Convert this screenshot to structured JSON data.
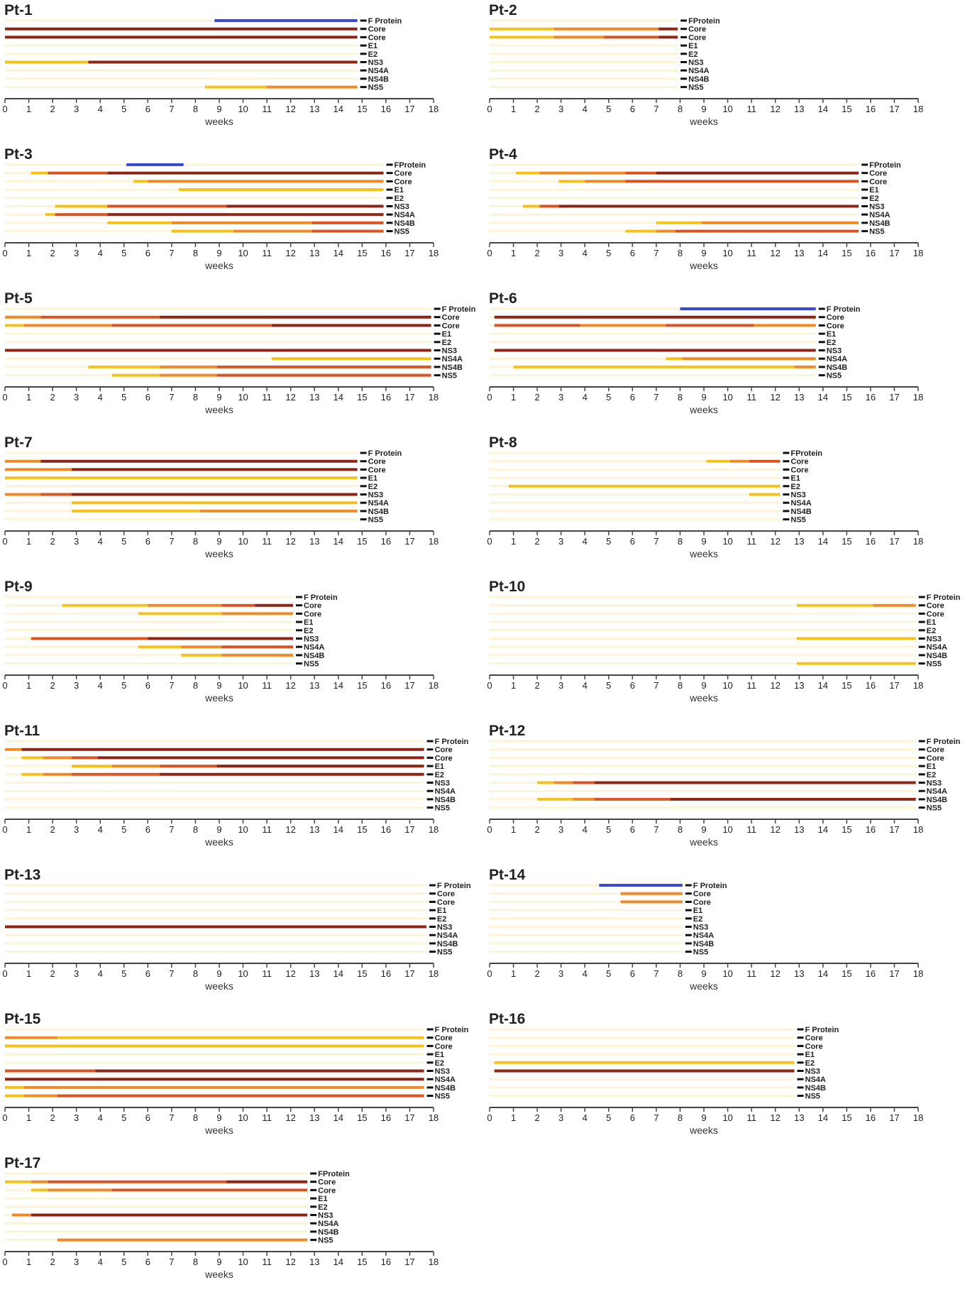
{
  "colors": {
    "track": "#fcf4d6",
    "axis": "#444444",
    "y": "#f6c21a",
    "o": "#f08a24",
    "r": "#d95420",
    "d": "#8e2414",
    "b": "#3a48d8"
  },
  "chart_data": [
    {
      "type": "timeline",
      "title": "Pt-1",
      "xlabel": "weeks",
      "xlim": [
        0,
        18
      ],
      "end": 14.8,
      "rows": [
        "F Protein",
        "Core",
        "Core",
        "E1",
        "E2",
        "NS3",
        "NS4A",
        "NS4B",
        "NS5"
      ],
      "segments": [
        [
          0,
          8.8,
          14.8,
          "b"
        ],
        [
          1,
          0,
          14.8,
          "d"
        ],
        [
          2,
          0,
          14.8,
          "d"
        ],
        [
          5,
          0,
          3.5,
          "y"
        ],
        [
          5,
          3.5,
          14.8,
          "d"
        ],
        [
          8,
          8.4,
          11,
          "y"
        ],
        [
          8,
          11,
          14.8,
          "o"
        ]
      ]
    },
    {
      "type": "timeline",
      "title": "Pt-2",
      "xlabel": "weeks",
      "xlim": [
        0,
        18
      ],
      "end": 7.9,
      "rows": [
        "FProtein",
        "Core",
        "Core",
        "E1",
        "E2",
        "NS3",
        "NS4A",
        "NS4B",
        "NS5"
      ],
      "segments": [
        [
          1,
          0,
          2.7,
          "y"
        ],
        [
          1,
          2.7,
          7.1,
          "o"
        ],
        [
          1,
          7.1,
          7.9,
          "d"
        ],
        [
          2,
          0,
          2.7,
          "y"
        ],
        [
          2,
          2.7,
          4.8,
          "o"
        ],
        [
          2,
          4.8,
          7.1,
          "r"
        ],
        [
          2,
          7.1,
          7.9,
          "d"
        ]
      ]
    },
    {
      "type": "timeline",
      "title": "Pt-3",
      "xlabel": "weeks",
      "xlim": [
        0,
        18
      ],
      "end": 15.9,
      "rows": [
        "FProtein",
        "Core",
        "Core",
        "E1",
        "E2",
        "NS3",
        "NS4A",
        "NS4B",
        "NS5"
      ],
      "segments": [
        [
          0,
          5.1,
          7.5,
          "b"
        ],
        [
          1,
          1.1,
          1.8,
          "y"
        ],
        [
          1,
          1.8,
          4.3,
          "r"
        ],
        [
          1,
          4.3,
          15.9,
          "d"
        ],
        [
          2,
          5.4,
          6,
          "y"
        ],
        [
          2,
          6,
          15.9,
          "o"
        ],
        [
          3,
          7.3,
          15.9,
          "y"
        ],
        [
          5,
          2.1,
          4.3,
          "y"
        ],
        [
          5,
          4.3,
          9.3,
          "r"
        ],
        [
          5,
          9.3,
          15.9,
          "d"
        ],
        [
          6,
          1.7,
          2.1,
          "y"
        ],
        [
          6,
          2.1,
          4.3,
          "r"
        ],
        [
          6,
          4.3,
          15.9,
          "d"
        ],
        [
          7,
          4.3,
          7,
          "y"
        ],
        [
          7,
          7,
          12.9,
          "o"
        ],
        [
          7,
          12.9,
          15.9,
          "r"
        ],
        [
          8,
          7,
          9.6,
          "y"
        ],
        [
          8,
          9.6,
          12.9,
          "o"
        ],
        [
          8,
          12.9,
          15.9,
          "r"
        ]
      ]
    },
    {
      "type": "timeline",
      "title": "Pt-4",
      "xlabel": "weeks",
      "xlim": [
        0,
        18
      ],
      "end": 15.5,
      "rows": [
        "FProtein",
        "Core",
        "Core",
        "E1",
        "E2",
        "NS3",
        "NS4A",
        "NS4B",
        "NS5"
      ],
      "segments": [
        [
          1,
          1.1,
          2.1,
          "y"
        ],
        [
          1,
          2.1,
          5.7,
          "o"
        ],
        [
          1,
          5.7,
          7,
          "r"
        ],
        [
          1,
          7,
          15.5,
          "d"
        ],
        [
          2,
          2.9,
          4,
          "y"
        ],
        [
          2,
          4,
          5.7,
          "o"
        ],
        [
          2,
          5.7,
          15.5,
          "r"
        ],
        [
          5,
          1.4,
          2.1,
          "y"
        ],
        [
          5,
          2.1,
          2.9,
          "r"
        ],
        [
          5,
          2.9,
          15.5,
          "d"
        ],
        [
          7,
          7,
          8.9,
          "y"
        ],
        [
          7,
          8.9,
          15.5,
          "o"
        ],
        [
          8,
          5.7,
          7,
          "y"
        ],
        [
          8,
          7,
          7.8,
          "o"
        ],
        [
          8,
          7.8,
          15.5,
          "r"
        ]
      ]
    },
    {
      "type": "timeline",
      "title": "Pt-5",
      "xlabel": "weeks",
      "xlim": [
        0,
        18
      ],
      "end": 17.9,
      "rows": [
        "F Protein",
        "Core",
        "Core",
        "E1",
        "E2",
        "NS3",
        "NS4A",
        "NS4B",
        "NS5"
      ],
      "segments": [
        [
          1,
          0,
          1.5,
          "o"
        ],
        [
          1,
          1.5,
          6.5,
          "r"
        ],
        [
          1,
          6.5,
          17.9,
          "d"
        ],
        [
          2,
          0,
          0.8,
          "y"
        ],
        [
          2,
          0.8,
          4.5,
          "o"
        ],
        [
          2,
          4.5,
          11.2,
          "r"
        ],
        [
          2,
          11.2,
          17.9,
          "d"
        ],
        [
          5,
          0,
          17.9,
          "d"
        ],
        [
          6,
          11.2,
          17.9,
          "y"
        ],
        [
          7,
          3.5,
          6.5,
          "y"
        ],
        [
          7,
          6.5,
          8.9,
          "o"
        ],
        [
          7,
          8.9,
          17.9,
          "r"
        ],
        [
          8,
          4.5,
          6.5,
          "y"
        ],
        [
          8,
          6.5,
          8.9,
          "o"
        ],
        [
          8,
          8.9,
          17.9,
          "r"
        ]
      ]
    },
    {
      "type": "timeline",
      "title": "Pt-6",
      "xlabel": "weeks",
      "xlim": [
        0,
        18
      ],
      "end": 13.7,
      "rows": [
        "F Protein",
        "Core",
        "Core",
        "E1",
        "E2",
        "NS3",
        "NS4A",
        "NS4B",
        "NS5"
      ],
      "segments": [
        [
          0,
          8,
          13.7,
          "b"
        ],
        [
          1,
          0.2,
          13.7,
          "d"
        ],
        [
          2,
          0.2,
          3.8,
          "r"
        ],
        [
          2,
          3.8,
          7.4,
          "o"
        ],
        [
          2,
          7.4,
          11.1,
          "r"
        ],
        [
          2,
          11.1,
          13.7,
          "o"
        ],
        [
          5,
          0.2,
          13.7,
          "d"
        ],
        [
          6,
          7.4,
          8.1,
          "y"
        ],
        [
          6,
          8.1,
          13.7,
          "o"
        ],
        [
          7,
          1,
          12.8,
          "y"
        ],
        [
          7,
          12.8,
          13.7,
          "o"
        ]
      ]
    },
    {
      "type": "timeline",
      "title": "Pt-7",
      "xlabel": "weeks",
      "xlim": [
        0,
        18
      ],
      "end": 14.8,
      "rows": [
        "F Protein",
        "Core",
        "Core",
        "E1",
        "E2",
        "NS3",
        "NS4A",
        "NS4B",
        "NS5"
      ],
      "segments": [
        [
          1,
          0,
          1.5,
          "o"
        ],
        [
          1,
          1.5,
          14.8,
          "d"
        ],
        [
          2,
          0,
          2.8,
          "o"
        ],
        [
          2,
          2.8,
          14.8,
          "d"
        ],
        [
          3,
          0,
          14.8,
          "y"
        ],
        [
          5,
          0,
          1.5,
          "o"
        ],
        [
          5,
          1.5,
          2.8,
          "r"
        ],
        [
          5,
          2.8,
          14.8,
          "d"
        ],
        [
          6,
          2.8,
          14.8,
          "y"
        ],
        [
          7,
          2.8,
          8.2,
          "y"
        ],
        [
          7,
          8.2,
          14.8,
          "o"
        ]
      ]
    },
    {
      "type": "timeline",
      "title": "Pt-8",
      "xlabel": "weeks",
      "xlim": [
        0,
        18
      ],
      "end": 12.2,
      "rows": [
        "FProtein",
        "Core",
        "Core",
        "E1",
        "E2",
        "NS3",
        "NS4A",
        "NS4B",
        "NS5"
      ],
      "segments": [
        [
          1,
          9.1,
          10.1,
          "y"
        ],
        [
          1,
          10.1,
          10.9,
          "o"
        ],
        [
          1,
          10.9,
          12.2,
          "r"
        ],
        [
          4,
          0.8,
          12.2,
          "y"
        ],
        [
          5,
          10.9,
          12.2,
          "y"
        ]
      ]
    },
    {
      "type": "timeline",
      "title": "Pt-9",
      "xlabel": "weeks",
      "xlim": [
        0,
        18
      ],
      "end": 12.1,
      "rows": [
        "F Protein",
        "Core",
        "Core",
        "E1",
        "E2",
        "NS3",
        "NS4A",
        "NS4B",
        "NS5"
      ],
      "segments": [
        [
          1,
          2.4,
          6,
          "y"
        ],
        [
          1,
          6,
          9.1,
          "o"
        ],
        [
          1,
          9.1,
          10.5,
          "r"
        ],
        [
          1,
          10.5,
          12.1,
          "d"
        ],
        [
          2,
          5.6,
          9.1,
          "y"
        ],
        [
          2,
          9.1,
          12.1,
          "o"
        ],
        [
          5,
          1.1,
          6,
          "r"
        ],
        [
          5,
          6,
          12.1,
          "d"
        ],
        [
          6,
          5.6,
          7.4,
          "y"
        ],
        [
          6,
          7.4,
          9.1,
          "o"
        ],
        [
          6,
          9.1,
          12.1,
          "r"
        ],
        [
          7,
          7.4,
          9.1,
          "y"
        ],
        [
          7,
          9.1,
          12.1,
          "o"
        ]
      ]
    },
    {
      "type": "timeline",
      "title": "Pt-10",
      "xlabel": "weeks",
      "xlim": [
        0,
        18
      ],
      "end": 17.9,
      "rows": [
        "F Protein",
        "Core",
        "Core",
        "E1",
        "E2",
        "NS3",
        "NS4A",
        "NS4B",
        "NS5"
      ],
      "segments": [
        [
          1,
          12.9,
          16.1,
          "y"
        ],
        [
          1,
          16.1,
          17.9,
          "o"
        ],
        [
          5,
          12.9,
          17.9,
          "y"
        ],
        [
          8,
          12.9,
          17.9,
          "y"
        ]
      ]
    },
    {
      "type": "timeline",
      "title": "Pt-11",
      "xlabel": "weeks",
      "xlim": [
        0,
        18
      ],
      "end": 17.6,
      "rows": [
        "F Protein",
        "Core",
        "Core",
        "E1",
        "E2",
        "NS3",
        "NS4A",
        "NS4B",
        "NS5"
      ],
      "segments": [
        [
          1,
          0,
          0.7,
          "o"
        ],
        [
          1,
          0.7,
          17.6,
          "d"
        ],
        [
          2,
          0.7,
          1.6,
          "y"
        ],
        [
          2,
          1.6,
          2.8,
          "o"
        ],
        [
          2,
          2.8,
          3.9,
          "r"
        ],
        [
          2,
          3.9,
          17.6,
          "d"
        ],
        [
          3,
          2.8,
          4.5,
          "y"
        ],
        [
          3,
          4.5,
          6.5,
          "o"
        ],
        [
          3,
          6.5,
          8.9,
          "r"
        ],
        [
          3,
          8.9,
          17.6,
          "d"
        ],
        [
          4,
          0.7,
          1.6,
          "y"
        ],
        [
          4,
          1.6,
          2.8,
          "o"
        ],
        [
          4,
          2.8,
          6.5,
          "r"
        ],
        [
          4,
          6.5,
          17.6,
          "d"
        ]
      ]
    },
    {
      "type": "timeline",
      "title": "Pt-12",
      "xlabel": "weeks",
      "xlim": [
        0,
        18
      ],
      "end": 17.9,
      "rows": [
        "F Protein",
        "Core",
        "Core",
        "E1",
        "E2",
        "NS3",
        "NS4A",
        "NS4B",
        "NS5"
      ],
      "segments": [
        [
          5,
          2,
          2.7,
          "y"
        ],
        [
          5,
          2.7,
          3.5,
          "o"
        ],
        [
          5,
          3.5,
          4.4,
          "r"
        ],
        [
          5,
          4.4,
          17.9,
          "d"
        ],
        [
          7,
          2,
          3.5,
          "y"
        ],
        [
          7,
          3.5,
          4.4,
          "o"
        ],
        [
          7,
          4.4,
          7.6,
          "r"
        ],
        [
          7,
          7.6,
          17.9,
          "d"
        ]
      ]
    },
    {
      "type": "timeline",
      "title": "Pt-13",
      "xlabel": "weeks",
      "xlim": [
        0,
        18
      ],
      "end": 17.7,
      "rows": [
        "F Protein",
        "Core",
        "Core",
        "E1",
        "E2",
        "NS3",
        "NS4A",
        "NS4B",
        "NS5"
      ],
      "segments": [
        [
          5,
          0,
          17.7,
          "d"
        ]
      ]
    },
    {
      "type": "timeline",
      "title": "Pt-14",
      "xlabel": "weeks",
      "xlim": [
        0,
        18
      ],
      "end": 8.1,
      "rows": [
        "F Protein",
        "Core",
        "Core",
        "E1",
        "E2",
        "NS3",
        "NS4A",
        "NS4B",
        "NS5"
      ],
      "segments": [
        [
          0,
          4.6,
          8.1,
          "b"
        ],
        [
          1,
          5.5,
          8.1,
          "o"
        ],
        [
          2,
          5.5,
          8.1,
          "o"
        ]
      ]
    },
    {
      "type": "timeline",
      "title": "Pt-15",
      "xlabel": "weeks",
      "xlim": [
        0,
        18
      ],
      "end": 17.6,
      "rows": [
        "F Protein",
        "Core",
        "Core",
        "E1",
        "E2",
        "NS3",
        "NS4A",
        "NS4B",
        "NS5"
      ],
      "segments": [
        [
          1,
          0,
          2.2,
          "o"
        ],
        [
          1,
          2.2,
          17.6,
          "y"
        ],
        [
          2,
          0,
          17.6,
          "y"
        ],
        [
          5,
          0,
          3.8,
          "r"
        ],
        [
          5,
          3.8,
          17.6,
          "d"
        ],
        [
          6,
          0,
          17.6,
          "d"
        ],
        [
          7,
          0,
          0.8,
          "y"
        ],
        [
          7,
          0.8,
          17.6,
          "o"
        ],
        [
          8,
          0,
          0.8,
          "y"
        ],
        [
          8,
          0.8,
          2.2,
          "o"
        ],
        [
          8,
          2.2,
          17.6,
          "r"
        ]
      ]
    },
    {
      "type": "timeline",
      "title": "Pt-16",
      "xlabel": "weeks",
      "xlim": [
        0,
        18
      ],
      "end": 12.8,
      "rows": [
        "F Protein",
        "Core",
        "Core",
        "E1",
        "E2",
        "NS3",
        "NS4A",
        "NS4B",
        "NS5"
      ],
      "segments": [
        [
          4,
          0.2,
          12.8,
          "y"
        ],
        [
          5,
          0.2,
          12.8,
          "d"
        ]
      ]
    },
    {
      "type": "timeline",
      "title": "Pt-17",
      "xlabel": "weeks",
      "xlim": [
        0,
        18
      ],
      "end": 12.7,
      "rows": [
        "FProtein",
        "Core",
        "Core",
        "E1",
        "E2",
        "NS3",
        "NS4A",
        "NS4B",
        "NS5"
      ],
      "segments": [
        [
          1,
          0,
          1.1,
          "y"
        ],
        [
          1,
          1.1,
          1.8,
          "o"
        ],
        [
          1,
          1.8,
          9.3,
          "r"
        ],
        [
          1,
          9.3,
          12.7,
          "d"
        ],
        [
          2,
          1.1,
          1.8,
          "y"
        ],
        [
          2,
          1.8,
          4.5,
          "o"
        ],
        [
          2,
          4.5,
          12.7,
          "r"
        ],
        [
          5,
          0.3,
          1.1,
          "o"
        ],
        [
          5,
          1.1,
          12.7,
          "d"
        ],
        [
          8,
          2.2,
          12.7,
          "o"
        ]
      ]
    }
  ]
}
